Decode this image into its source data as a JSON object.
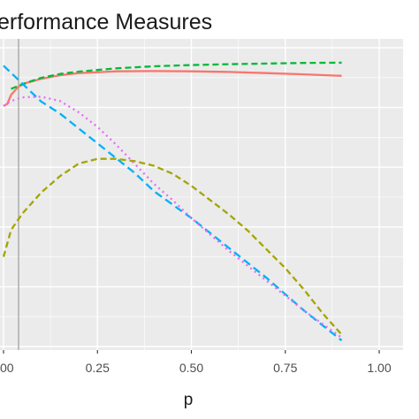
{
  "chart_data": {
    "type": "line",
    "title": "erformance Measures",
    "xlabel": "p",
    "ylabel": "",
    "xlim": [
      0,
      1
    ],
    "x_ticks": [
      {
        "value": 0.0,
        "label": "00"
      },
      {
        "value": 0.25,
        "label": "0.25"
      },
      {
        "value": 0.5,
        "label": "0.50"
      },
      {
        "value": 0.75,
        "label": "0.75"
      },
      {
        "value": 1.0,
        "label": "1.00"
      }
    ],
    "ylim": [
      0,
      1
    ],
    "grid": true,
    "background": "#EBEBEB",
    "reference_line_x": 0.04,
    "series": [
      {
        "color": "#F8766D",
        "linestyle": "solid",
        "x": [
          0.0,
          0.01,
          0.02,
          0.04,
          0.06,
          0.1,
          0.15,
          0.2,
          0.3,
          0.4,
          0.5,
          0.6,
          0.7,
          0.8,
          0.9
        ],
        "y": [
          0.805,
          0.812,
          0.842,
          0.87,
          0.882,
          0.896,
          0.908,
          0.915,
          0.921,
          0.922,
          0.921,
          0.919,
          0.915,
          0.911,
          0.906
        ]
      },
      {
        "color": "#00BA38",
        "linestyle": "dashed",
        "x": [
          0.02,
          0.05,
          0.1,
          0.15,
          0.2,
          0.3,
          0.4,
          0.5,
          0.6,
          0.7,
          0.8,
          0.9
        ],
        "y": [
          0.862,
          0.878,
          0.899,
          0.912,
          0.92,
          0.931,
          0.938,
          0.942,
          0.945,
          0.947,
          0.949,
          0.95
        ]
      },
      {
        "color": "#00B0F6",
        "linestyle": "longdash",
        "x": [
          0.0,
          0.05,
          0.1,
          0.15,
          0.2,
          0.25,
          0.3,
          0.35,
          0.4,
          0.5,
          0.6,
          0.7,
          0.8,
          0.9
        ],
        "y": [
          0.94,
          0.88,
          0.82,
          0.78,
          0.73,
          0.68,
          0.63,
          0.58,
          0.52,
          0.43,
          0.33,
          0.23,
          0.12,
          0.02
        ]
      },
      {
        "color": "#E76BF3",
        "linestyle": "dotted",
        "x": [
          0.0,
          0.02,
          0.05,
          0.1,
          0.15,
          0.2,
          0.25,
          0.3,
          0.35,
          0.4,
          0.45,
          0.5,
          0.6,
          0.7,
          0.8,
          0.9
        ],
        "y": [
          0.805,
          0.822,
          0.834,
          0.836,
          0.822,
          0.784,
          0.735,
          0.675,
          0.61,
          0.545,
          0.49,
          0.43,
          0.32,
          0.22,
          0.12,
          0.03
        ]
      },
      {
        "color": "#A3A500",
        "linestyle": "dashed",
        "x": [
          0.0,
          0.02,
          0.05,
          0.1,
          0.15,
          0.2,
          0.25,
          0.3,
          0.35,
          0.4,
          0.45,
          0.5,
          0.55,
          0.6,
          0.65,
          0.7,
          0.75,
          0.8,
          0.85,
          0.9
        ],
        "y": [
          0.3,
          0.39,
          0.445,
          0.515,
          0.57,
          0.612,
          0.628,
          0.628,
          0.62,
          0.605,
          0.578,
          0.538,
          0.49,
          0.442,
          0.388,
          0.325,
          0.262,
          0.19,
          0.11,
          0.04
        ]
      }
    ]
  }
}
